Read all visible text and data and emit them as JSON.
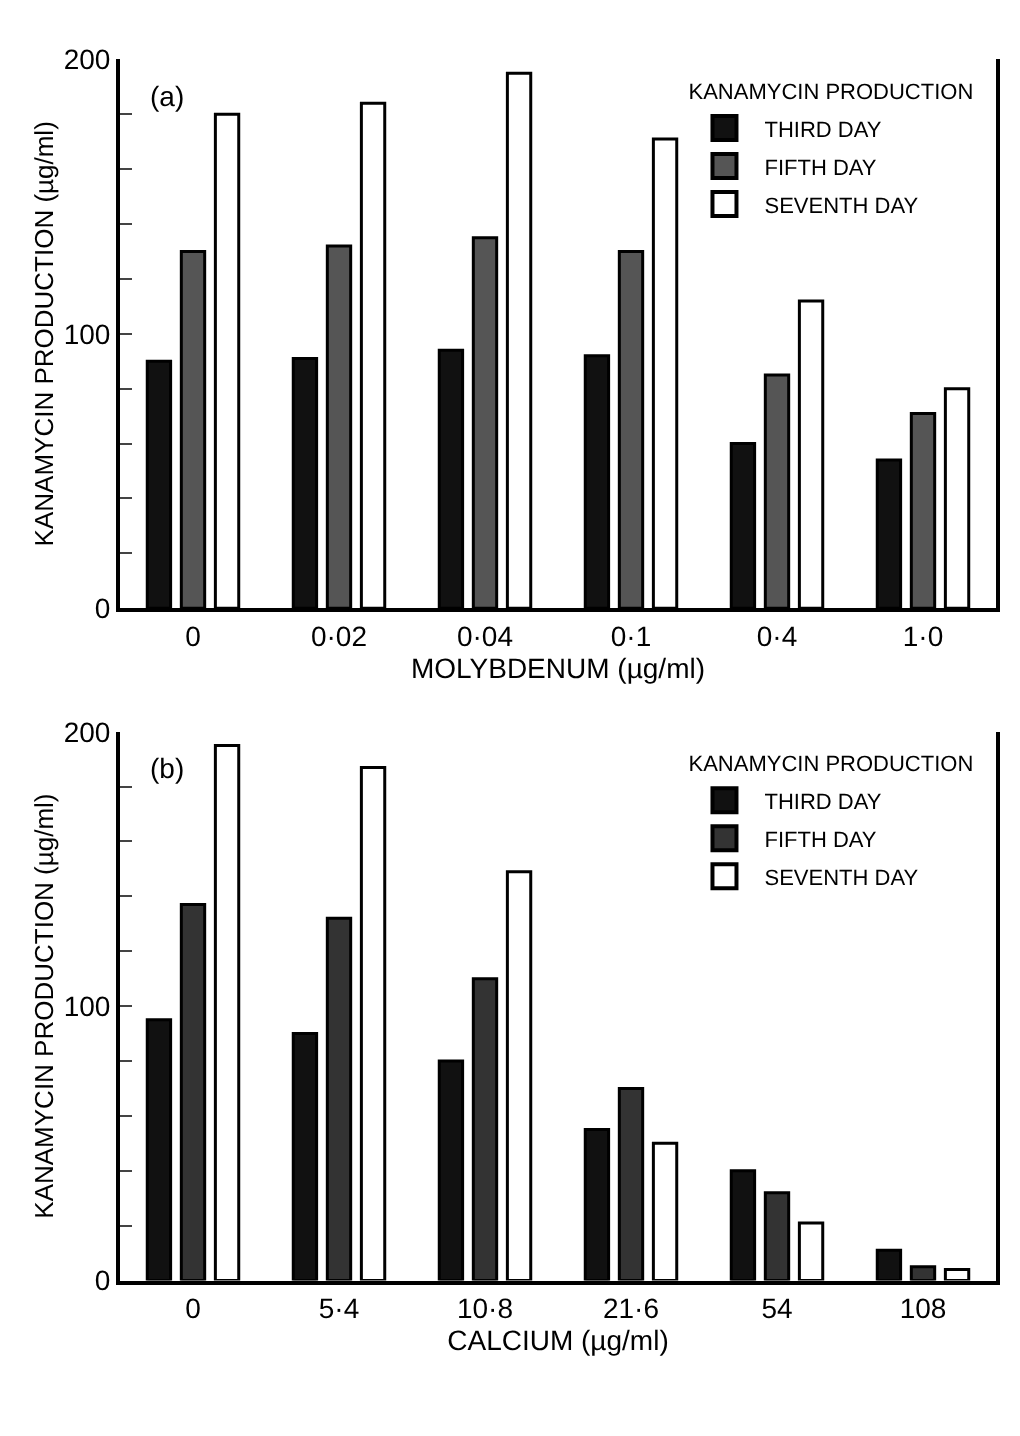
{
  "chart_data": [
    {
      "type": "bar",
      "categories": [
        "0",
        "0·02",
        "0·04",
        "0·1",
        "0·4",
        "1·0"
      ],
      "xlabel": "MOLYBDENUM (µg/ml)",
      "ylabel": "KANAMYCIN PRODUCTION (µg/ml)",
      "legend_title": "KANAMYCIN PRODUCTION",
      "legend": "top right",
      "annotations": [
        "(a)"
      ],
      "ylim": [
        0,
        200
      ],
      "yticks": [
        0,
        {
          "value": 20,
          "label": null
        },
        {
          "value": 40,
          "label": null
        },
        {
          "value": 60,
          "label": null
        },
        {
          "value": 80,
          "label": null
        },
        100,
        {
          "value": 120,
          "label": null
        },
        {
          "value": 140,
          "label": null
        },
        {
          "value": 160,
          "label": null
        },
        {
          "value": 180,
          "label": null
        },
        200
      ],
      "series": [
        {
          "name": "THIRD DAY",
          "color": "#111111",
          "values": [
            90,
            91,
            94,
            92,
            60,
            54
          ]
        },
        {
          "name": "FIFTH DAY",
          "color": "#555555",
          "values": [
            130,
            132,
            135,
            130,
            85,
            71
          ]
        },
        {
          "name": "SEVENTH DAY",
          "color": "#ffffff",
          "values": [
            180,
            184,
            195,
            171,
            112,
            80
          ]
        }
      ]
    },
    {
      "type": "bar",
      "categories": [
        "0",
        "5·4",
        "10·8",
        "21·6",
        "54",
        "108"
      ],
      "xlabel": "CALCIUM (µg/ml)",
      "ylabel": "KANAMYCIN PRODUCTION (µg/ml)",
      "legend_title": "KANAMYCIN PRODUCTION",
      "legend": "top right",
      "annotations": [
        "(b)"
      ],
      "ylim": [
        0,
        200
      ],
      "yticks": [
        0,
        {
          "value": 20,
          "label": null
        },
        {
          "value": 40,
          "label": null
        },
        {
          "value": 60,
          "label": null
        },
        {
          "value": 80,
          "label": null
        },
        100,
        {
          "value": 120,
          "label": null
        },
        {
          "value": 140,
          "label": null
        },
        {
          "value": 160,
          "label": null
        },
        {
          "value": 180,
          "label": null
        },
        200
      ],
      "series": [
        {
          "name": "THIRD DAY",
          "color": "#111111",
          "values": [
            95,
            90,
            80,
            55,
            40,
            11
          ]
        },
        {
          "name": "FIFTH DAY",
          "color": "#333333",
          "values": [
            137,
            132,
            110,
            70,
            32,
            5
          ]
        },
        {
          "name": "SEVENTH DAY",
          "color": "#ffffff",
          "values": [
            195,
            187,
            149,
            50,
            21,
            4
          ]
        }
      ]
    }
  ]
}
